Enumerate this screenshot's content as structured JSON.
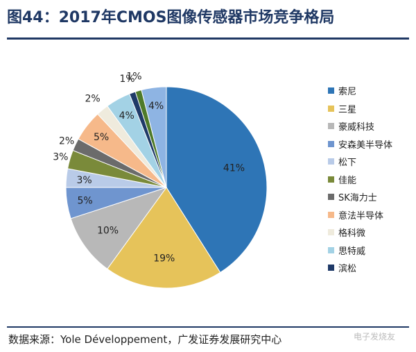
{
  "title": "图44：2017年CMOS图像传感器市场竞争格局",
  "source": "数据来源：Yole Développement，广发证券发展研究中心",
  "watermark": "电子发烧友",
  "chart_data": {
    "type": "pie",
    "title": "",
    "legend_position": "right",
    "start_angle_deg": 0,
    "direction": "clockwise",
    "slices": [
      {
        "name": "索尼",
        "value": 41,
        "label": "41%",
        "color": "#2e75b6"
      },
      {
        "name": "三星",
        "value": 19,
        "label": "19%",
        "color": "#e6c35a"
      },
      {
        "name": "豪威科技",
        "value": 10,
        "label": "10%",
        "color": "#b8b8b8"
      },
      {
        "name": "安森美半导体",
        "value": 5,
        "label": "5%",
        "color": "#6f95cf"
      },
      {
        "name": "松下",
        "value": 3,
        "label": "3%",
        "color": "#b9cbe8"
      },
      {
        "name": "佳能",
        "value": 3,
        "label": "3%",
        "color": "#7a8a3a"
      },
      {
        "name": "SK海力士",
        "value": 2,
        "label": "2%",
        "color": "#6b6b6b"
      },
      {
        "name": "意法半导体",
        "value": 5,
        "label": "5%",
        "color": "#f6b98a"
      },
      {
        "name": "格科微",
        "value": 2,
        "label": "2%",
        "color": "#efebdd"
      },
      {
        "name": "思特威",
        "value": 4,
        "label": "4%",
        "color": "#a3d2e5"
      },
      {
        "name": "滨松",
        "value": 1,
        "label": "1%",
        "color": "#1f3a68"
      },
      {
        "name": "",
        "value": 1,
        "label": "1%",
        "color": "#4e7a2a"
      },
      {
        "name": "",
        "value": 4,
        "label": "4%",
        "color": "#8eb4e3"
      }
    ],
    "legend": [
      "索尼",
      "三星",
      "豪威科技",
      "安森美半导体",
      "松下",
      "佳能",
      "SK海力士",
      "意法半导体",
      "格科微",
      "思特威",
      "滨松"
    ]
  }
}
